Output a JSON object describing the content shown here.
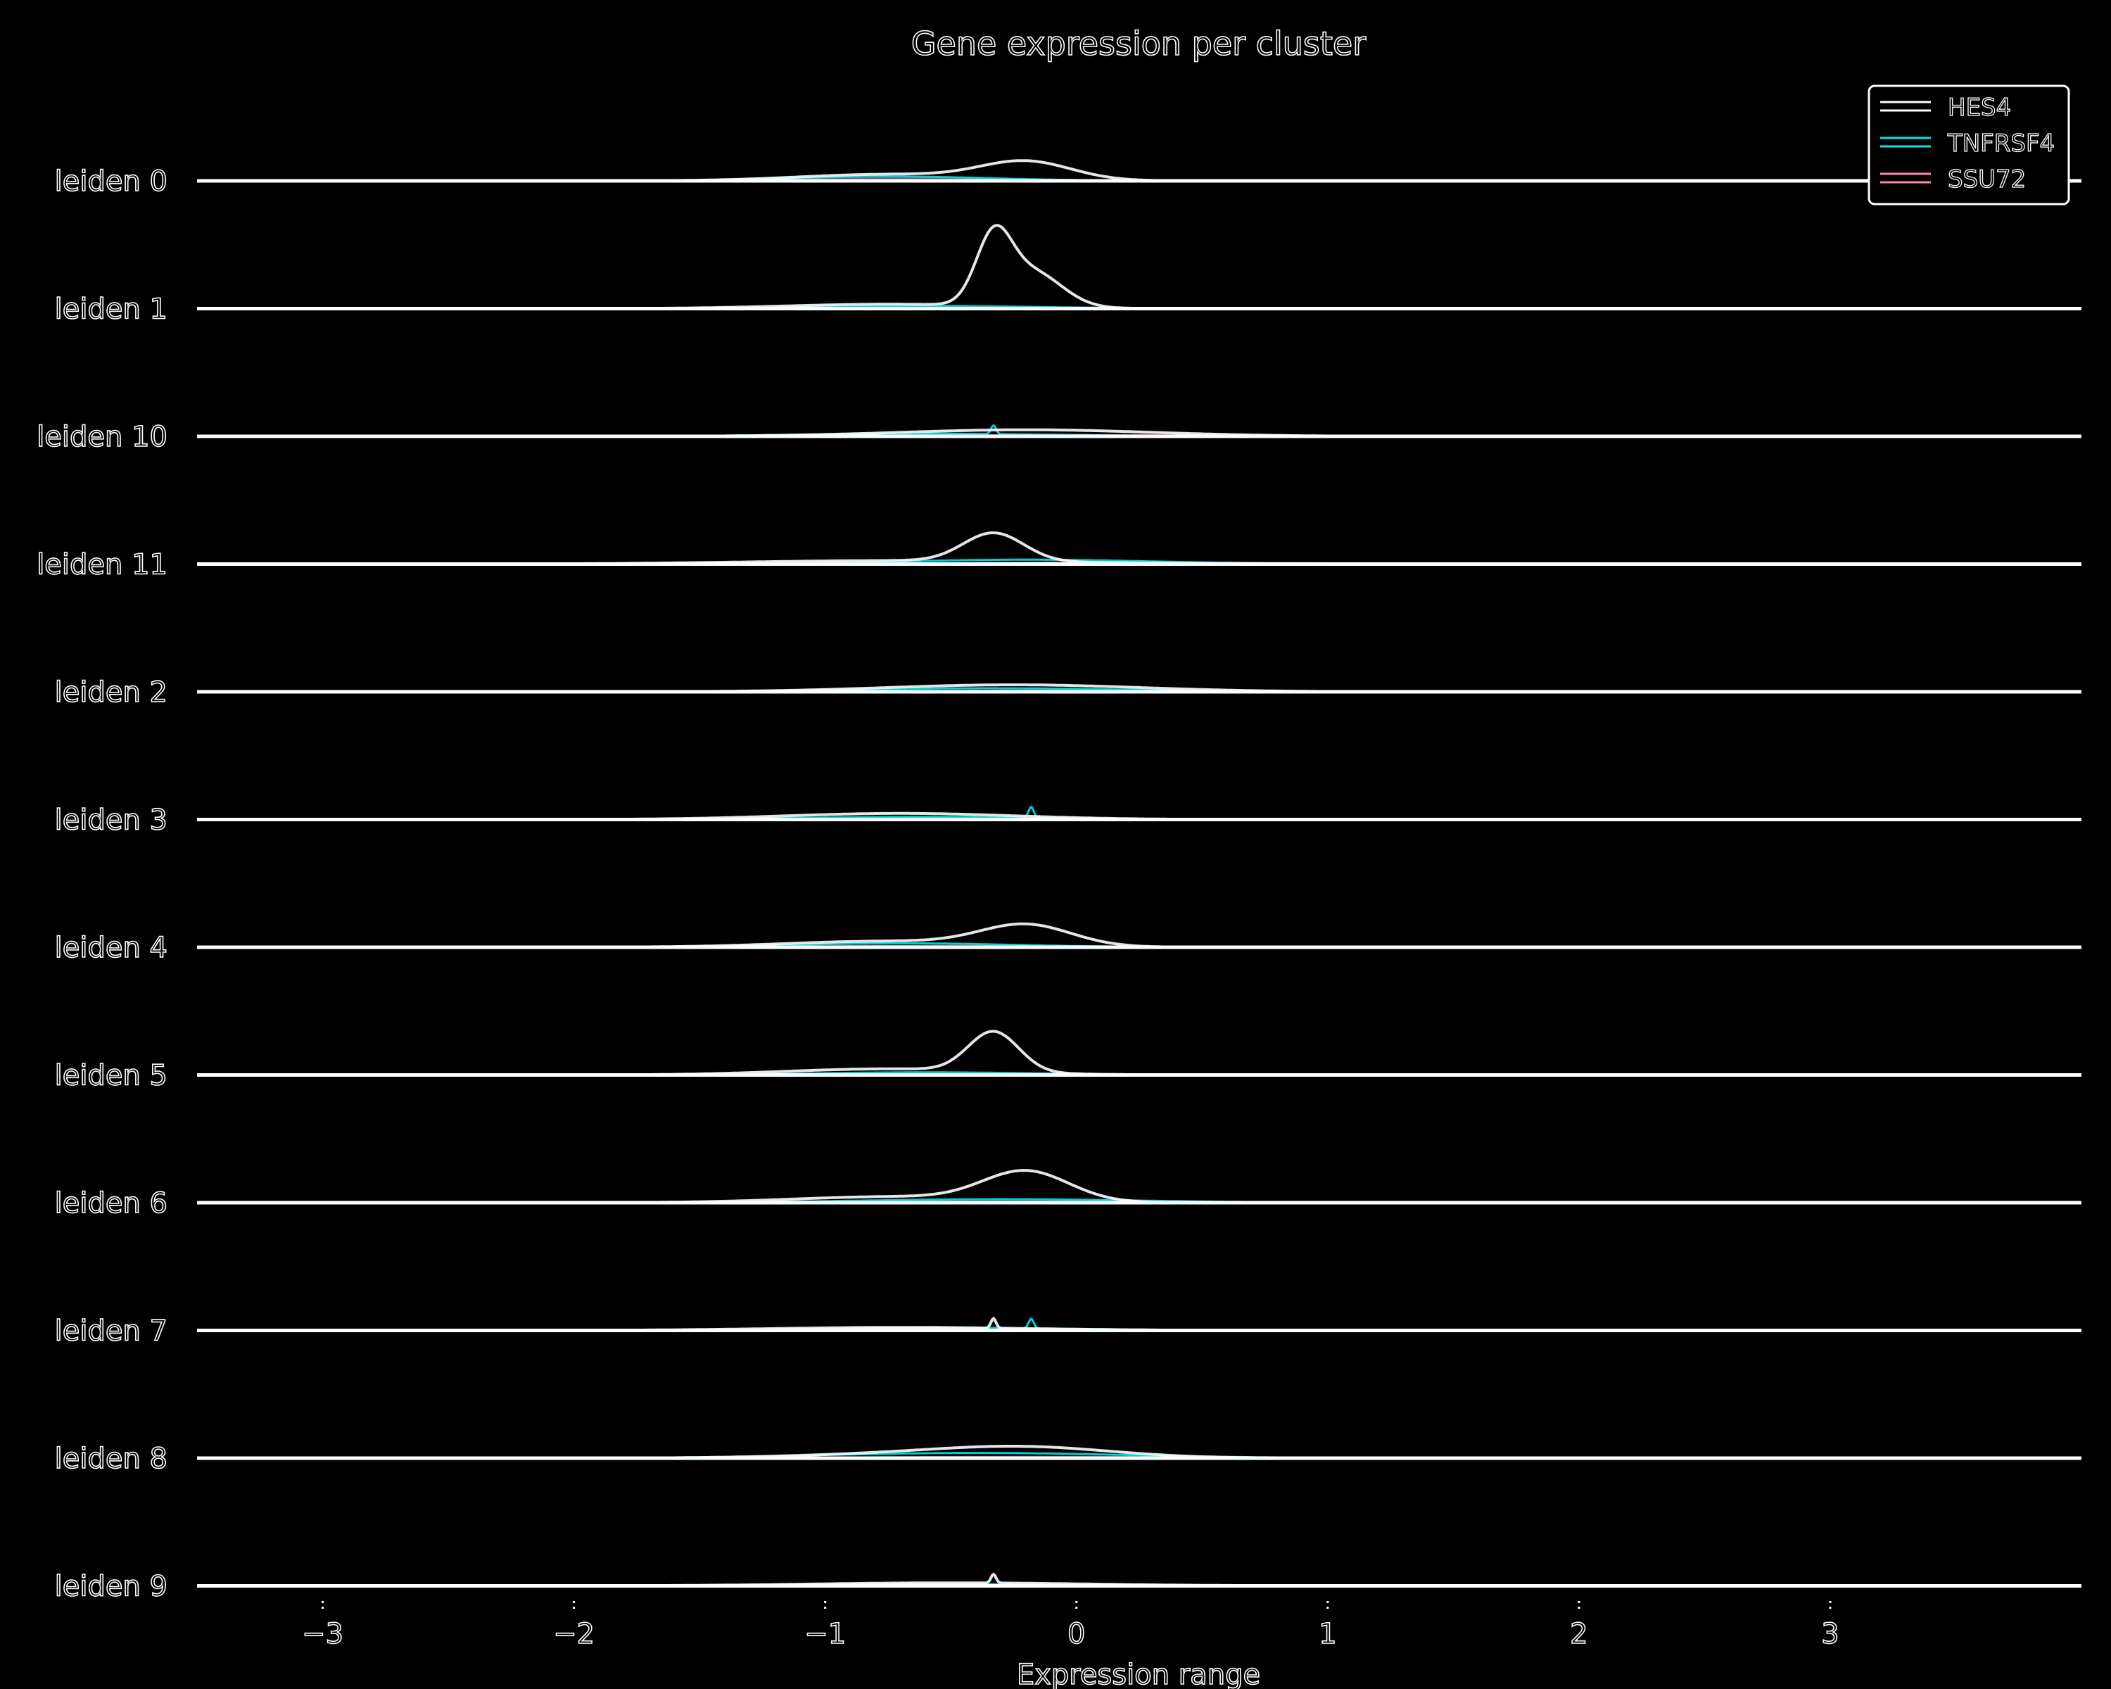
{
  "chart_data": {
    "type": "line",
    "title": "Gene expression per cluster",
    "xlabel": "Expression range",
    "ylabel": "",
    "xlim": [
      -3.5,
      4.0
    ],
    "x_ticks": [
      -3,
      -2,
      -1,
      0,
      1,
      2,
      3
    ],
    "x_tick_labels": [
      "−3",
      "−2",
      "−1",
      "0",
      "1",
      "2",
      "3"
    ],
    "legend_position": "top-right",
    "series": [
      {
        "name": "HES4",
        "color": "#ffffff"
      },
      {
        "name": "TNFRSF4",
        "color": "#00e5ee"
      },
      {
        "name": "SSU72",
        "color": "#ff88aa"
      }
    ],
    "clusters": [
      {
        "label": "leiden 0",
        "curves": [
          {
            "series": 0,
            "peaks": [
              {
                "mu": -0.2,
                "sigma": 0.18,
                "h": 0.42
              },
              {
                "mu": -0.75,
                "sigma": 0.35,
                "h": 0.15
              }
            ]
          },
          {
            "series": 1,
            "peaks": [
              {
                "mu": -0.75,
                "sigma": 0.4,
                "h": 0.1
              }
            ]
          },
          {
            "series": 2,
            "peaks": [
              {
                "mu": -0.7,
                "sigma": 0.5,
                "h": 0.05
              }
            ]
          }
        ]
      },
      {
        "label": "leiden 1",
        "curves": [
          {
            "series": 0,
            "peaks": [
              {
                "mu": -0.33,
                "sigma": 0.07,
                "h": 1.45
              },
              {
                "mu": -0.18,
                "sigma": 0.12,
                "h": 0.82
              },
              {
                "mu": -0.75,
                "sigma": 0.4,
                "h": 0.1
              }
            ]
          },
          {
            "series": 1,
            "peaks": [
              {
                "mu": -0.6,
                "sigma": 0.45,
                "h": 0.06
              }
            ]
          },
          {
            "series": 2,
            "peaks": [
              {
                "mu": -0.5,
                "sigma": 0.6,
                "h": 0.03
              }
            ]
          }
        ]
      },
      {
        "label": "leiden 10",
        "curves": [
          {
            "series": 0,
            "peaks": [
              {
                "mu": -0.2,
                "sigma": 0.5,
                "h": 0.15
              }
            ]
          },
          {
            "series": 1,
            "peaks": [
              {
                "mu": -0.6,
                "sigma": 0.5,
                "h": 0.06
              },
              {
                "mu": -0.33,
                "sigma": 0.01,
                "h": 0.2
              }
            ]
          },
          {
            "series": 2,
            "peaks": [
              {
                "mu": 0.0,
                "sigma": 0.6,
                "h": 0.03
              }
            ]
          }
        ]
      },
      {
        "label": "leiden 11",
        "curves": [
          {
            "series": 0,
            "peaks": [
              {
                "mu": -0.33,
                "sigma": 0.12,
                "h": 0.65
              },
              {
                "mu": -0.7,
                "sigma": 0.6,
                "h": 0.08
              }
            ]
          },
          {
            "series": 1,
            "peaks": [
              {
                "mu": -0.2,
                "sigma": 0.5,
                "h": 0.1
              }
            ]
          },
          {
            "series": 2,
            "peaks": [
              {
                "mu": 0.2,
                "sigma": 0.6,
                "h": 0.04
              }
            ]
          }
        ]
      },
      {
        "label": "leiden 2",
        "curves": [
          {
            "series": 0,
            "peaks": [
              {
                "mu": -0.25,
                "sigma": 0.5,
                "h": 0.16
              }
            ]
          },
          {
            "series": 1,
            "peaks": [
              {
                "mu": -0.35,
                "sigma": 0.55,
                "h": 0.08
              }
            ]
          },
          {
            "series": 2,
            "peaks": [
              {
                "mu": 0.0,
                "sigma": 0.6,
                "h": 0.03
              }
            ]
          }
        ]
      },
      {
        "label": "leiden 3",
        "curves": [
          {
            "series": 0,
            "peaks": [
              {
                "mu": -0.7,
                "sigma": 0.45,
                "h": 0.14
              }
            ]
          },
          {
            "series": 1,
            "peaks": [
              {
                "mu": -0.6,
                "sigma": 0.5,
                "h": 0.06
              },
              {
                "mu": -0.18,
                "sigma": 0.01,
                "h": 0.25
              }
            ]
          },
          {
            "series": 2,
            "peaks": [
              {
                "mu": -0.4,
                "sigma": 0.6,
                "h": 0.03
              }
            ]
          }
        ]
      },
      {
        "label": "leiden 4",
        "curves": [
          {
            "series": 0,
            "peaks": [
              {
                "mu": -0.2,
                "sigma": 0.18,
                "h": 0.48
              },
              {
                "mu": -0.75,
                "sigma": 0.4,
                "h": 0.14
              }
            ]
          },
          {
            "series": 1,
            "peaks": [
              {
                "mu": -0.7,
                "sigma": 0.45,
                "h": 0.09
              }
            ]
          },
          {
            "series": 2,
            "peaks": [
              {
                "mu": -0.5,
                "sigma": 0.6,
                "h": 0.03
              }
            ]
          }
        ]
      },
      {
        "label": "leiden 5",
        "curves": [
          {
            "series": 0,
            "peaks": [
              {
                "mu": -0.33,
                "sigma": 0.1,
                "h": 0.92
              },
              {
                "mu": -0.75,
                "sigma": 0.4,
                "h": 0.14
              }
            ]
          },
          {
            "series": 1,
            "peaks": [
              {
                "mu": -0.6,
                "sigma": 0.45,
                "h": 0.06
              }
            ]
          },
          {
            "series": 2,
            "peaks": [
              {
                "mu": -0.4,
                "sigma": 0.6,
                "h": 0.03
              }
            ]
          }
        ]
      },
      {
        "label": "leiden 6",
        "curves": [
          {
            "series": 0,
            "peaks": [
              {
                "mu": -0.2,
                "sigma": 0.17,
                "h": 0.68
              },
              {
                "mu": -0.72,
                "sigma": 0.4,
                "h": 0.14
              }
            ]
          },
          {
            "series": 1,
            "peaks": [
              {
                "mu": -0.3,
                "sigma": 0.55,
                "h": 0.08
              }
            ]
          },
          {
            "series": 2,
            "peaks": [
              {
                "mu": -0.3,
                "sigma": 0.6,
                "h": 0.03
              }
            ]
          }
        ]
      },
      {
        "label": "leiden 7",
        "curves": [
          {
            "series": 0,
            "peaks": [
              {
                "mu": -0.7,
                "sigma": 0.5,
                "h": 0.07
              },
              {
                "mu": -0.33,
                "sigma": 0.01,
                "h": 0.22
              }
            ]
          },
          {
            "series": 1,
            "peaks": [
              {
                "mu": -0.5,
                "sigma": 0.5,
                "h": 0.06
              },
              {
                "mu": -0.18,
                "sigma": 0.01,
                "h": 0.22
              }
            ]
          },
          {
            "series": 2,
            "peaks": [
              {
                "mu": -0.3,
                "sigma": 0.6,
                "h": 0.03
              }
            ]
          }
        ]
      },
      {
        "label": "leiden 8",
        "curves": [
          {
            "series": 0,
            "peaks": [
              {
                "mu": -0.2,
                "sigma": 0.35,
                "h": 0.24
              },
              {
                "mu": -0.75,
                "sigma": 0.4,
                "h": 0.08
              }
            ]
          },
          {
            "series": 1,
            "peaks": [
              {
                "mu": -0.4,
                "sigma": 0.6,
                "h": 0.12
              }
            ]
          },
          {
            "series": 2,
            "peaks": [
              {
                "mu": -0.2,
                "sigma": 0.6,
                "h": 0.03
              }
            ]
          }
        ]
      },
      {
        "label": "leiden 9",
        "curves": [
          {
            "series": 0,
            "peaks": [
              {
                "mu": -0.5,
                "sigma": 0.55,
                "h": 0.07
              },
              {
                "mu": -0.33,
                "sigma": 0.01,
                "h": 0.2
              }
            ]
          },
          {
            "series": 1,
            "peaks": [
              {
                "mu": -0.6,
                "sigma": 0.4,
                "h": 0.05
              }
            ]
          },
          {
            "series": 2,
            "peaks": [
              {
                "mu": -0.3,
                "sigma": 0.6,
                "h": 0.02
              }
            ]
          }
        ]
      }
    ]
  }
}
